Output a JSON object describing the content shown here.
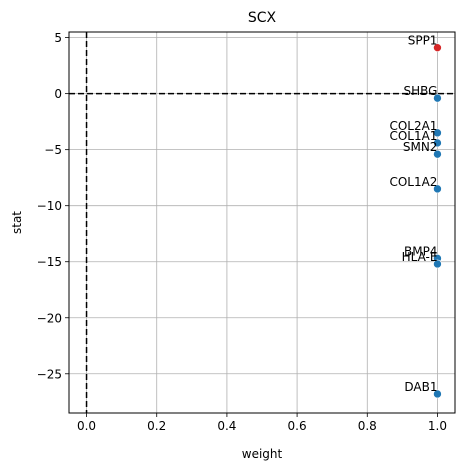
{
  "chart_data": {
    "type": "scatter",
    "title": "SCX",
    "xlabel": "weight",
    "ylabel": "stat",
    "xlim": [
      -0.05,
      1.05
    ],
    "ylim": [
      -28.5,
      5.5
    ],
    "xticks": [
      0.0,
      0.2,
      0.4,
      0.6,
      0.8,
      1.0
    ],
    "xtick_labels": [
      "0.0",
      "0.2",
      "0.4",
      "0.6",
      "0.8",
      "1.0"
    ],
    "yticks": [
      5,
      0,
      -5,
      -10,
      -15,
      -20,
      -25
    ],
    "ytick_labels": [
      "5",
      "0",
      "−5",
      "−10",
      "−15",
      "−20",
      "−25"
    ],
    "grid": true,
    "reference_lines": {
      "x": 0,
      "y": 0,
      "style": "dashed",
      "color": "#000000"
    },
    "colors": {
      "positive": "#d62728",
      "negative": "#1f77b4"
    },
    "points": [
      {
        "label": "SPP1",
        "x": 1.0,
        "y": 4.1
      },
      {
        "label": "SHBG",
        "x": 1.0,
        "y": -0.4
      },
      {
        "label": "COL2A1",
        "x": 1.0,
        "y": -3.5
      },
      {
        "label": "COL1A1",
        "x": 1.0,
        "y": -4.4
      },
      {
        "label": "SMN2",
        "x": 1.0,
        "y": -5.4
      },
      {
        "label": "COL1A2",
        "x": 1.0,
        "y": -8.5
      },
      {
        "label": "BMP4",
        "x": 1.0,
        "y": -14.7
      },
      {
        "label": "HLA-E",
        "x": 1.0,
        "y": -15.2
      },
      {
        "label": "DAB1",
        "x": 1.0,
        "y": -26.8
      }
    ]
  }
}
